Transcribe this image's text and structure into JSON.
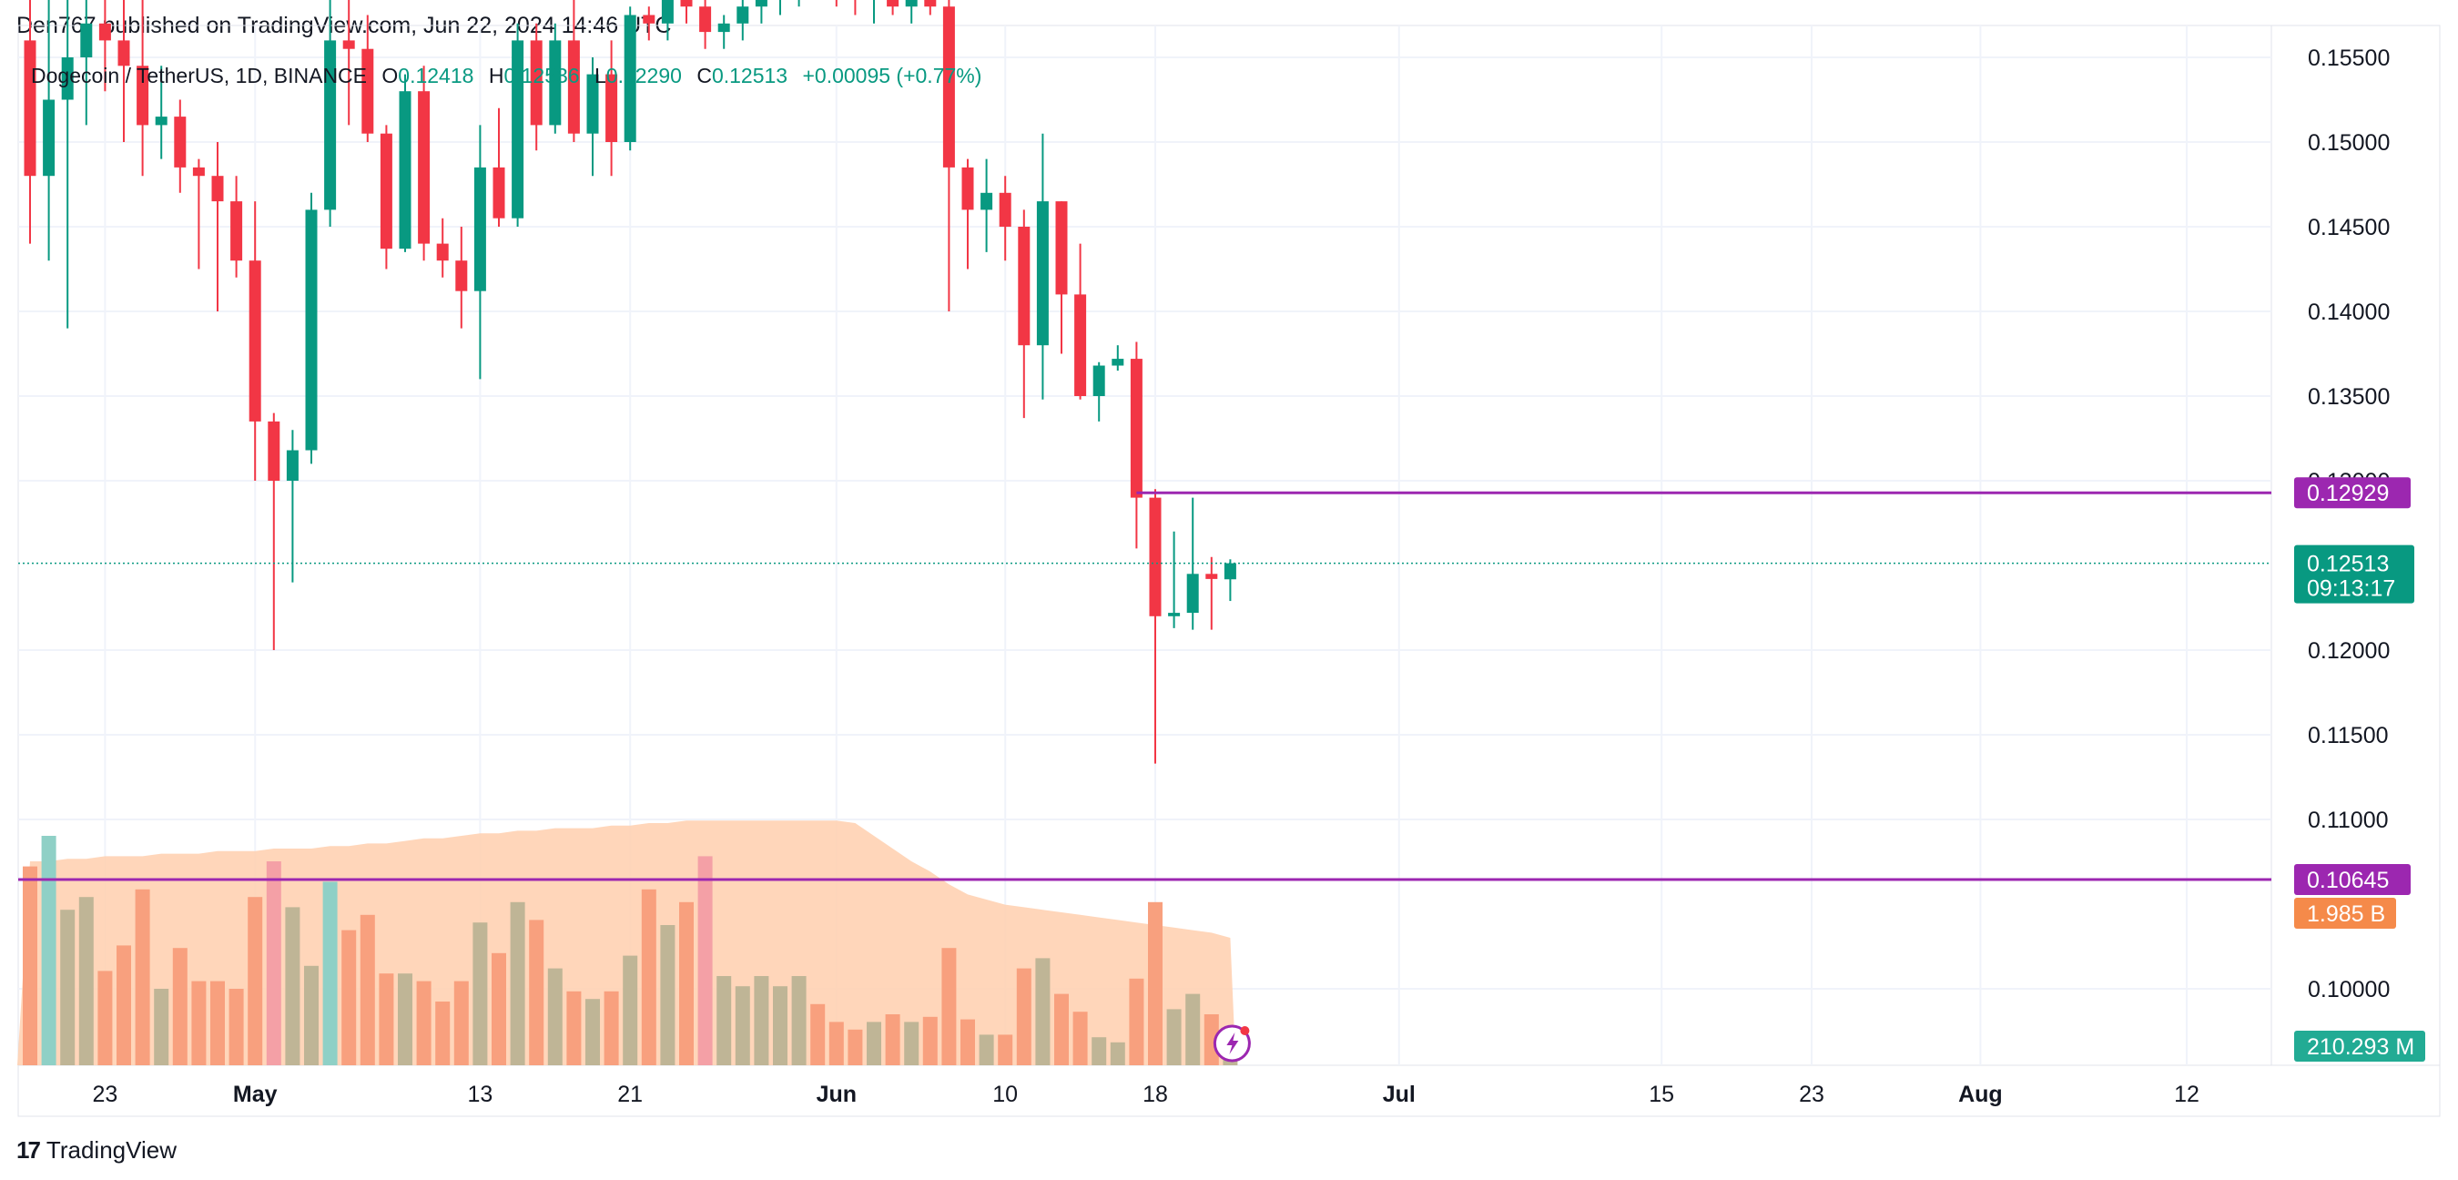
{
  "header": {
    "published": "Den767 published on TradingView.com, Jun 22, 2024 14:46 UTC"
  },
  "legend": {
    "symbol": "Dogecoin / TetherUS, 1D, BINANCE",
    "o_label": "O",
    "o_value": "0.12418",
    "h_label": "H",
    "h_value": "0.12536",
    "l_label": "L",
    "l_value": "0.12290",
    "c_label": "C",
    "c_value": "0.12513",
    "change": "+0.00095 (+0.77%)"
  },
  "footer": {
    "brand": "TradingView",
    "logo_glyph": "17"
  },
  "colors": {
    "up": "#089981",
    "down": "#f23645",
    "vol_up": "#bfb596",
    "vol_down": "#f8a07e",
    "vol_up_hi": "#8fd0c6",
    "vol_down_hi": "#f4a0a6",
    "vol_ma": "#ffcfae",
    "level": "#9c27b0",
    "vol_label_bg": "#f58a4a",
    "vol_ma_label_bg": "#22ab94",
    "price_label_bg": "#089981"
  },
  "price_axis": {
    "ticks": [
      "0.15500",
      "0.15000",
      "0.14500",
      "0.14000",
      "0.13500",
      "0.13000",
      "0.12000",
      "0.11500",
      "0.11000",
      "0.10000"
    ],
    "min": 0.0955,
    "max": 0.1572
  },
  "labels": {
    "level_upper": "0.12929",
    "level_lower": "0.10645",
    "last_price": "0.12513",
    "countdown": "09:13:17",
    "volume": "1.985 B",
    "volume_ma": "210.293 M"
  },
  "levels": {
    "upper": 0.12929,
    "lower": 0.10645,
    "last": 0.12513
  },
  "time_axis": {
    "labels": [
      {
        "text": "23",
        "day": 4,
        "bold": false
      },
      {
        "text": "May",
        "day": 12,
        "bold": true
      },
      {
        "text": "13",
        "day": 24,
        "bold": false
      },
      {
        "text": "21",
        "day": 32,
        "bold": false
      },
      {
        "text": "Jun",
        "day": 43,
        "bold": true
      },
      {
        "text": "10",
        "day": 52,
        "bold": false
      },
      {
        "text": "18",
        "day": 60,
        "bold": false
      },
      {
        "text": "Jul",
        "day": 73,
        "bold": true
      },
      {
        "text": "15",
        "day": 87,
        "bold": false
      },
      {
        "text": "23",
        "day": 95,
        "bold": false
      },
      {
        "text": "Aug",
        "day": 104,
        "bold": true
      },
      {
        "text": "12",
        "day": 115,
        "bold": false
      }
    ]
  },
  "chart_data": {
    "type": "candlestick",
    "symbol": "Dogecoin / TetherUS, 1D, BINANCE",
    "ylim": [
      0.0955,
      0.1572
    ],
    "candles": [
      {
        "o": 0.156,
        "h": 0.161,
        "l": 0.144,
        "c": 0.148,
        "v": 0.78
      },
      {
        "o": 0.148,
        "h": 0.16,
        "l": 0.143,
        "c": 0.1525,
        "v": 0.9
      },
      {
        "o": 0.1525,
        "h": 0.161,
        "l": 0.139,
        "c": 0.155,
        "v": 0.61
      },
      {
        "o": 0.155,
        "h": 0.16,
        "l": 0.151,
        "c": 0.157,
        "v": 0.66
      },
      {
        "o": 0.157,
        "h": 0.159,
        "l": 0.153,
        "c": 0.156,
        "v": 0.37
      },
      {
        "o": 0.156,
        "h": 0.16,
        "l": 0.15,
        "c": 0.1545,
        "v": 0.47
      },
      {
        "o": 0.1545,
        "h": 0.159,
        "l": 0.148,
        "c": 0.151,
        "v": 0.69
      },
      {
        "o": 0.151,
        "h": 0.1545,
        "l": 0.149,
        "c": 0.1515,
        "v": 0.3
      },
      {
        "o": 0.1515,
        "h": 0.1525,
        "l": 0.147,
        "c": 0.1485,
        "v": 0.46
      },
      {
        "o": 0.1485,
        "h": 0.149,
        "l": 0.1425,
        "c": 0.148,
        "v": 0.33
      },
      {
        "o": 0.148,
        "h": 0.15,
        "l": 0.14,
        "c": 0.1465,
        "v": 0.33
      },
      {
        "o": 0.1465,
        "h": 0.148,
        "l": 0.142,
        "c": 0.143,
        "v": 0.3
      },
      {
        "o": 0.143,
        "h": 0.1465,
        "l": 0.13,
        "c": 0.1335,
        "v": 0.66
      },
      {
        "o": 0.1335,
        "h": 0.134,
        "l": 0.12,
        "c": 0.13,
        "v": 0.8
      },
      {
        "o": 0.13,
        "h": 0.133,
        "l": 0.124,
        "c": 0.1318,
        "v": 0.62
      },
      {
        "o": 0.1318,
        "h": 0.147,
        "l": 0.131,
        "c": 0.146,
        "v": 0.39
      },
      {
        "o": 0.146,
        "h": 0.159,
        "l": 0.145,
        "c": 0.156,
        "v": 0.72
      },
      {
        "o": 0.156,
        "h": 0.159,
        "l": 0.151,
        "c": 0.1555,
        "v": 0.53
      },
      {
        "o": 0.1555,
        "h": 0.1575,
        "l": 0.15,
        "c": 0.1505,
        "v": 0.59
      },
      {
        "o": 0.1505,
        "h": 0.151,
        "l": 0.1425,
        "c": 0.1437,
        "v": 0.36
      },
      {
        "o": 0.1437,
        "h": 0.154,
        "l": 0.1435,
        "c": 0.153,
        "v": 0.36
      },
      {
        "o": 0.153,
        "h": 0.1545,
        "l": 0.143,
        "c": 0.144,
        "v": 0.33
      },
      {
        "o": 0.144,
        "h": 0.1455,
        "l": 0.142,
        "c": 0.143,
        "v": 0.25
      },
      {
        "o": 0.143,
        "h": 0.145,
        "l": 0.139,
        "c": 0.1412,
        "v": 0.33
      },
      {
        "o": 0.1412,
        "h": 0.151,
        "l": 0.136,
        "c": 0.1485,
        "v": 0.56
      },
      {
        "o": 0.1485,
        "h": 0.152,
        "l": 0.145,
        "c": 0.1455,
        "v": 0.44
      },
      {
        "o": 0.1455,
        "h": 0.157,
        "l": 0.145,
        "c": 0.156,
        "v": 0.64
      },
      {
        "o": 0.156,
        "h": 0.157,
        "l": 0.1495,
        "c": 0.151,
        "v": 0.57
      },
      {
        "o": 0.151,
        "h": 0.157,
        "l": 0.1505,
        "c": 0.156,
        "v": 0.38
      },
      {
        "o": 0.156,
        "h": 0.159,
        "l": 0.15,
        "c": 0.1505,
        "v": 0.29
      },
      {
        "o": 0.1505,
        "h": 0.155,
        "l": 0.148,
        "c": 0.154,
        "v": 0.26
      },
      {
        "o": 0.154,
        "h": 0.156,
        "l": 0.148,
        "c": 0.15,
        "v": 0.29
      },
      {
        "o": 0.15,
        "h": 0.158,
        "l": 0.1495,
        "c": 0.1575,
        "v": 0.43
      },
      {
        "o": 0.1575,
        "h": 0.158,
        "l": 0.156,
        "c": 0.157,
        "v": 0.69
      },
      {
        "o": 0.157,
        "h": 0.16,
        "l": 0.156,
        "c": 0.159,
        "v": 0.55
      },
      {
        "o": 0.159,
        "h": 0.16,
        "l": 0.157,
        "c": 0.158,
        "v": 0.64
      },
      {
        "o": 0.158,
        "h": 0.159,
        "l": 0.1555,
        "c": 0.1565,
        "v": 0.82
      },
      {
        "o": 0.1565,
        "h": 0.1575,
        "l": 0.1555,
        "c": 0.157,
        "v": 0.35
      },
      {
        "o": 0.157,
        "h": 0.159,
        "l": 0.156,
        "c": 0.158,
        "v": 0.31
      },
      {
        "o": 0.158,
        "h": 0.16,
        "l": 0.157,
        "c": 0.159,
        "v": 0.35
      },
      {
        "o": 0.159,
        "h": 0.16,
        "l": 0.1575,
        "c": 0.1595,
        "v": 0.31
      },
      {
        "o": 0.1595,
        "h": 0.161,
        "l": 0.158,
        "c": 0.16,
        "v": 0.35
      },
      {
        "o": 0.16,
        "h": 0.161,
        "l": 0.1585,
        "c": 0.1592,
        "v": 0.24
      },
      {
        "o": 0.1592,
        "h": 0.16,
        "l": 0.158,
        "c": 0.1588,
        "v": 0.17
      },
      {
        "o": 0.1588,
        "h": 0.16,
        "l": 0.1575,
        "c": 0.1584,
        "v": 0.14
      },
      {
        "o": 0.1584,
        "h": 0.1595,
        "l": 0.157,
        "c": 0.159,
        "v": 0.17
      },
      {
        "o": 0.159,
        "h": 0.16,
        "l": 0.1575,
        "c": 0.158,
        "v": 0.2
      },
      {
        "o": 0.158,
        "h": 0.159,
        "l": 0.157,
        "c": 0.1585,
        "v": 0.17
      },
      {
        "o": 0.1585,
        "h": 0.1595,
        "l": 0.1575,
        "c": 0.158,
        "v": 0.19
      },
      {
        "o": 0.158,
        "h": 0.159,
        "l": 0.14,
        "c": 0.1485,
        "v": 0.46
      },
      {
        "o": 0.1485,
        "h": 0.149,
        "l": 0.1425,
        "c": 0.146,
        "v": 0.18
      },
      {
        "o": 0.146,
        "h": 0.149,
        "l": 0.1435,
        "c": 0.147,
        "v": 0.12
      },
      {
        "o": 0.147,
        "h": 0.148,
        "l": 0.143,
        "c": 0.145,
        "v": 0.12
      },
      {
        "o": 0.145,
        "h": 0.146,
        "l": 0.1337,
        "c": 0.138,
        "v": 0.38
      },
      {
        "o": 0.138,
        "h": 0.1505,
        "l": 0.1348,
        "c": 0.1465,
        "v": 0.42
      },
      {
        "o": 0.1465,
        "h": 0.1465,
        "l": 0.1375,
        "c": 0.141,
        "v": 0.28
      },
      {
        "o": 0.141,
        "h": 0.144,
        "l": 0.1348,
        "c": 0.135,
        "v": 0.21
      },
      {
        "o": 0.135,
        "h": 0.137,
        "l": 0.1335,
        "c": 0.1368,
        "v": 0.11
      },
      {
        "o": 0.1368,
        "h": 0.138,
        "l": 0.1365,
        "c": 0.1372,
        "v": 0.09
      },
      {
        "o": 0.1372,
        "h": 0.1382,
        "l": 0.126,
        "c": 0.129,
        "v": 0.34
      },
      {
        "o": 0.129,
        "h": 0.1295,
        "l": 0.1133,
        "c": 0.122,
        "v": 0.64
      },
      {
        "o": 0.122,
        "h": 0.127,
        "l": 0.1213,
        "c": 0.1222,
        "v": 0.22
      },
      {
        "o": 0.1222,
        "h": 0.129,
        "l": 0.1212,
        "c": 0.1245,
        "v": 0.28
      },
      {
        "o": 0.1245,
        "h": 0.1255,
        "l": 0.1212,
        "c": 0.1242,
        "v": 0.2
      },
      {
        "o": 0.12418,
        "h": 0.12536,
        "l": 0.1229,
        "c": 0.12513,
        "v": 0.11
      }
    ],
    "volume_ma": [
      0.8,
      0.8,
      0.81,
      0.81,
      0.82,
      0.82,
      0.82,
      0.83,
      0.83,
      0.83,
      0.84,
      0.84,
      0.84,
      0.85,
      0.85,
      0.85,
      0.86,
      0.86,
      0.87,
      0.87,
      0.88,
      0.89,
      0.89,
      0.9,
      0.91,
      0.91,
      0.92,
      0.92,
      0.93,
      0.93,
      0.93,
      0.94,
      0.94,
      0.95,
      0.95,
      0.96,
      0.96,
      0.96,
      0.96,
      0.96,
      0.96,
      0.96,
      0.96,
      0.96,
      0.95,
      0.9,
      0.85,
      0.8,
      0.76,
      0.71,
      0.67,
      0.65,
      0.63,
      0.62,
      0.61,
      0.6,
      0.59,
      0.58,
      0.57,
      0.56,
      0.55,
      0.54,
      0.53,
      0.52,
      0.5
    ],
    "volume_highlight": [
      1,
      13,
      16,
      36
    ]
  }
}
